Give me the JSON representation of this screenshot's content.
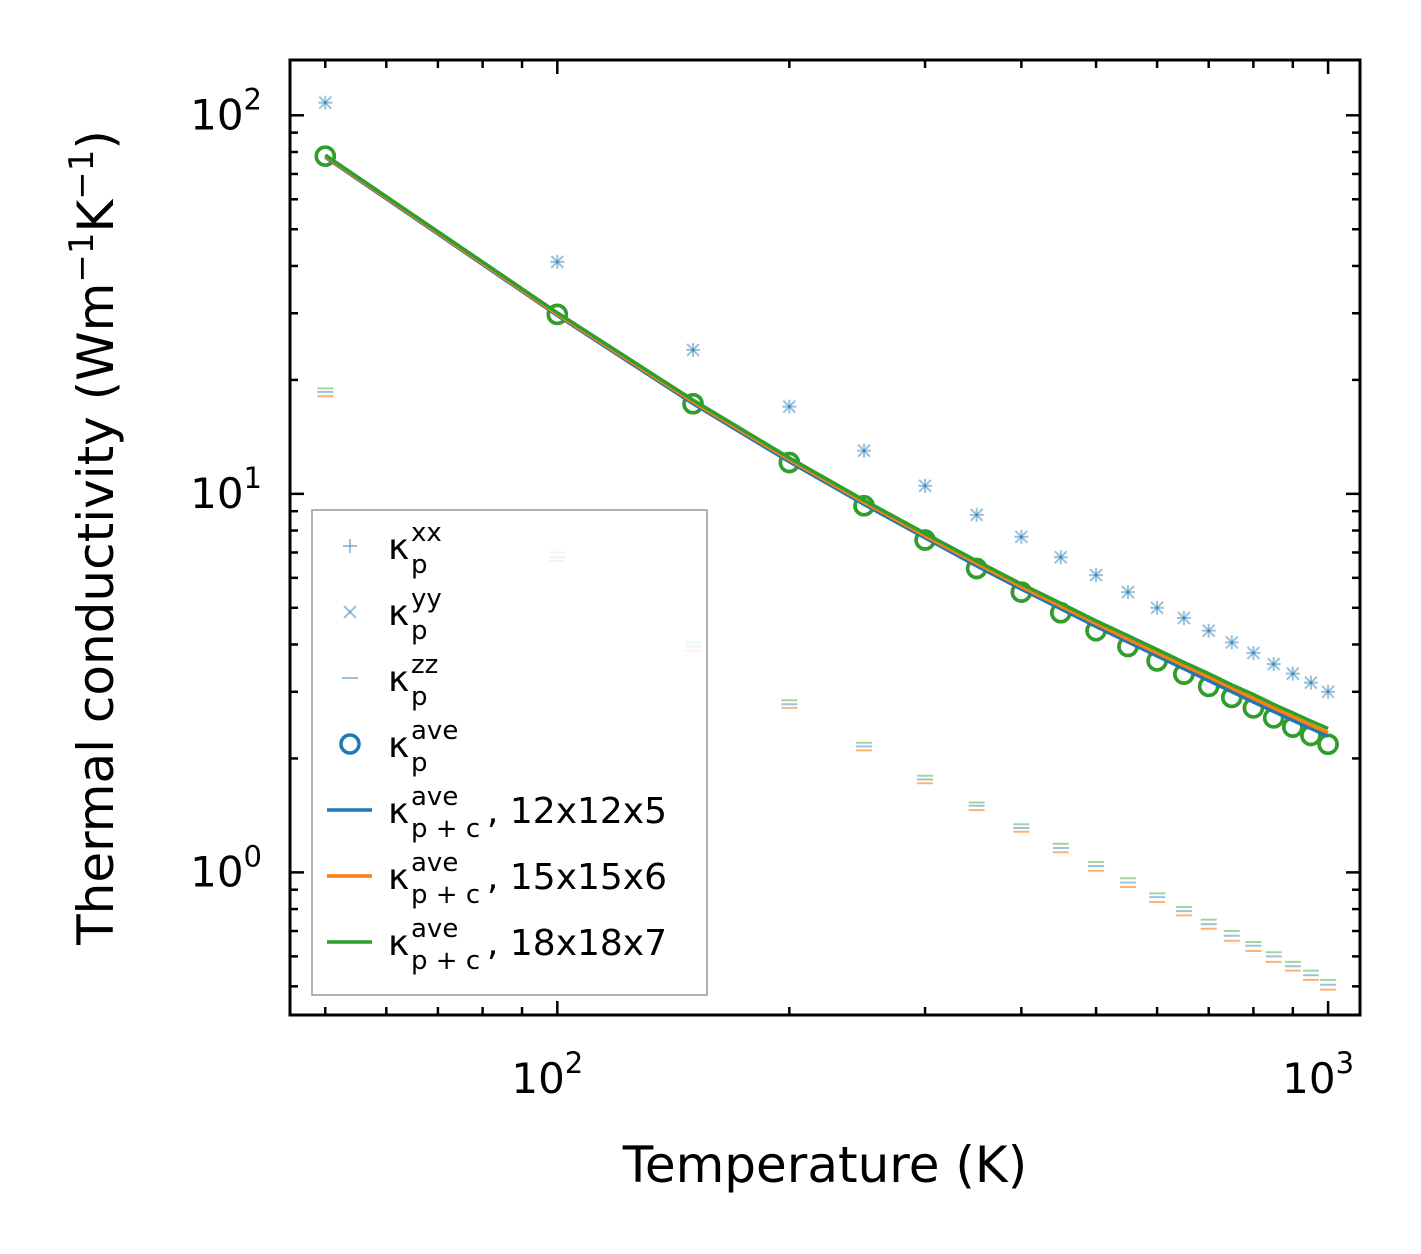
{
  "chart_data": {
    "type": "scatter",
    "xscale": "log",
    "yscale": "log",
    "xlim": [
      45,
      1100
    ],
    "ylim": [
      0.42,
      140
    ],
    "xlabel": "Temperature (K)",
    "ylabel": {
      "main": "Thermal conductivity (Wm",
      "sup1": "−1",
      "mid": "K",
      "sup2": "−1",
      "end": ")"
    },
    "x_ticks": [
      {
        "value": 100,
        "base": "10",
        "exp": "2"
      },
      {
        "value": 1000,
        "base": "10",
        "exp": "3"
      }
    ],
    "y_ticks": [
      {
        "value": 1,
        "base": "10",
        "exp": "0"
      },
      {
        "value": 10,
        "base": "10",
        "exp": "1"
      },
      {
        "value": 100,
        "base": "10",
        "exp": "2"
      }
    ],
    "temperatures": [
      50,
      100,
      150,
      200,
      250,
      300,
      350,
      400,
      450,
      500,
      550,
      600,
      650,
      700,
      750,
      800,
      850,
      900,
      950,
      1000
    ],
    "series": [
      {
        "name": "kappa_p_xx",
        "marker": "+",
        "color": "#1f77b4",
        "alpha": 0.45,
        "values": [
          108,
          41,
          24,
          17,
          13,
          10.5,
          8.8,
          7.7,
          6.8,
          6.1,
          5.5,
          5.0,
          4.7,
          4.35,
          4.05,
          3.8,
          3.55,
          3.35,
          3.17,
          3.0
        ]
      },
      {
        "name": "kappa_p_yy",
        "marker": "x",
        "color": "#1f77b4",
        "alpha": 0.45,
        "values": [
          108,
          41,
          24,
          17,
          13,
          10.5,
          8.8,
          7.7,
          6.8,
          6.1,
          5.5,
          5.0,
          4.7,
          4.35,
          4.05,
          3.8,
          3.55,
          3.35,
          3.17,
          3.0
        ]
      },
      {
        "name": "kappa_p_zz_12x12x5",
        "marker": "_",
        "color": "#1f77b4",
        "alpha": 0.45,
        "values": [
          18.6,
          6.8,
          3.95,
          2.78,
          2.15,
          1.76,
          1.5,
          1.31,
          1.16,
          1.04,
          0.94,
          0.86,
          0.79,
          0.73,
          0.68,
          0.64,
          0.6,
          0.565,
          0.535,
          0.505
        ]
      },
      {
        "name": "kappa_p_zz_15x15x6",
        "marker": "_",
        "color": "#ff7f0e",
        "alpha": 0.6,
        "values": [
          18.1,
          6.65,
          3.85,
          2.72,
          2.1,
          1.72,
          1.46,
          1.28,
          1.13,
          1.01,
          0.915,
          0.835,
          0.77,
          0.71,
          0.66,
          0.62,
          0.58,
          0.55,
          0.52,
          0.49
        ]
      },
      {
        "name": "kappa_p_zz_18x18x7",
        "marker": "_",
        "color": "#2ca02c",
        "alpha": 0.45,
        "values": [
          19.0,
          7.0,
          4.05,
          2.85,
          2.2,
          1.8,
          1.53,
          1.34,
          1.19,
          1.065,
          0.965,
          0.88,
          0.81,
          0.75,
          0.7,
          0.655,
          0.615,
          0.58,
          0.55,
          0.52
        ]
      },
      {
        "name": "kappa_p_ave_12x12x5",
        "marker": "o",
        "color": "#1f77b4",
        "alpha": 1,
        "values": [
          78,
          29.8,
          17.3,
          12.1,
          9.3,
          7.55,
          6.35,
          5.5,
          4.85,
          4.35,
          3.95,
          3.62,
          3.34,
          3.1,
          2.9,
          2.72,
          2.56,
          2.42,
          2.3,
          2.18
        ]
      },
      {
        "name": "kappa_p_ave_15x15x6",
        "marker": "o",
        "color": "#ff7f0e",
        "alpha": 1,
        "values": [
          78,
          29.8,
          17.3,
          12.1,
          9.3,
          7.55,
          6.35,
          5.5,
          4.85,
          4.35,
          3.95,
          3.62,
          3.34,
          3.1,
          2.9,
          2.72,
          2.56,
          2.42,
          2.3,
          2.18
        ]
      },
      {
        "name": "kappa_p_ave_18x18x7",
        "marker": "o",
        "color": "#2ca02c",
        "alpha": 1,
        "values": [
          78,
          29.8,
          17.3,
          12.1,
          9.3,
          7.55,
          6.35,
          5.5,
          4.85,
          4.35,
          3.95,
          3.62,
          3.34,
          3.1,
          2.9,
          2.72,
          2.56,
          2.42,
          2.3,
          2.18
        ]
      },
      {
        "name": "kappa_pc_ave_12x12x5",
        "marker": "line",
        "color": "#1f77b4",
        "alpha": 1,
        "values": [
          77.5,
          29.6,
          17.3,
          12.15,
          9.38,
          7.65,
          6.45,
          5.6,
          4.97,
          4.46,
          4.06,
          3.73,
          3.45,
          3.21,
          3.0,
          2.82,
          2.66,
          2.52,
          2.4,
          2.29
        ]
      },
      {
        "name": "kappa_pc_ave_15x15x6",
        "marker": "line",
        "color": "#ff7f0e",
        "alpha": 1,
        "values": [
          78,
          29.8,
          17.5,
          12.3,
          9.5,
          7.75,
          6.55,
          5.68,
          5.05,
          4.54,
          4.13,
          3.8,
          3.52,
          3.28,
          3.07,
          2.88,
          2.72,
          2.58,
          2.45,
          2.34
        ]
      },
      {
        "name": "kappa_pc_ave_18x18x7",
        "marker": "line",
        "color": "#2ca02c",
        "alpha": 1,
        "values": [
          78.5,
          30.1,
          17.7,
          12.45,
          9.62,
          7.86,
          6.65,
          5.78,
          5.14,
          4.62,
          4.22,
          3.88,
          3.59,
          3.35,
          3.13,
          2.95,
          2.78,
          2.64,
          2.51,
          2.4
        ]
      }
    ],
    "legend": {
      "position": "lower-left",
      "entries": [
        {
          "marker": "+",
          "color": "#1f77b4",
          "alpha": 0.45,
          "sym": "κ",
          "sub": "p",
          "sup": "xx",
          "suffix": ""
        },
        {
          "marker": "x",
          "color": "#1f77b4",
          "alpha": 0.45,
          "sym": "κ",
          "sub": "p",
          "sup": "yy",
          "suffix": ""
        },
        {
          "marker": "_",
          "color": "#1f77b4",
          "alpha": 0.45,
          "sym": "κ",
          "sub": "p",
          "sup": "zz",
          "suffix": ""
        },
        {
          "marker": "o",
          "color": "#1f77b4",
          "alpha": 1,
          "sym": "κ",
          "sub": "p",
          "sup": "ave",
          "suffix": ""
        },
        {
          "marker": "line",
          "color": "#1f77b4",
          "alpha": 1,
          "sym": "κ",
          "sub": "p + c",
          "sup": "ave",
          "suffix": ", 12x12x5"
        },
        {
          "marker": "line",
          "color": "#ff7f0e",
          "alpha": 1,
          "sym": "κ",
          "sub": "p + c",
          "sup": "ave",
          "suffix": ", 15x15x6"
        },
        {
          "marker": "line",
          "color": "#2ca02c",
          "alpha": 1,
          "sym": "κ",
          "sub": "p + c",
          "sup": "ave",
          "suffix": ", 18x18x7"
        }
      ]
    }
  }
}
